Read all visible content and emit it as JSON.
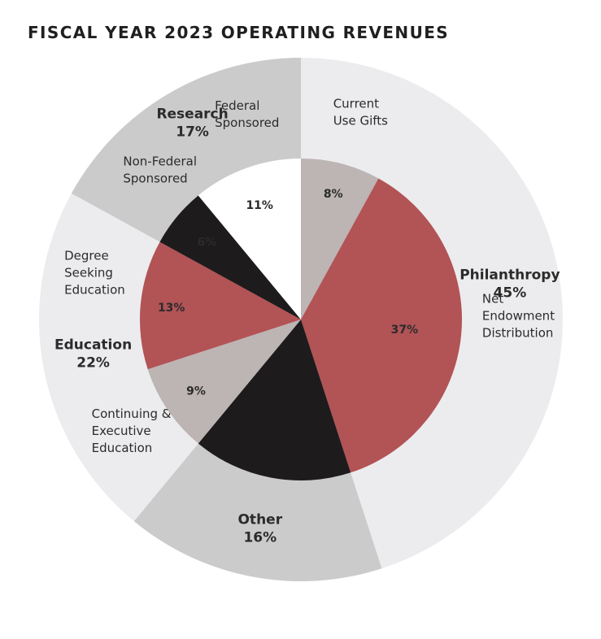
{
  "chart_data": {
    "type": "pie",
    "variant": "nested-donut",
    "title": "FISCAL YEAR 2023 OPERATING REVENUES",
    "outer_ring": [
      {
        "name": "Philanthropy",
        "value": 45,
        "value_label": "45%",
        "color": "#ececee"
      },
      {
        "name": "Other",
        "value": 16,
        "value_label": "16%",
        "color": "#cbcbcc"
      },
      {
        "name": "Education",
        "value": 22,
        "value_label": "22%",
        "color": "#ececee"
      },
      {
        "name": "Research",
        "value": 17,
        "value_label": "17%",
        "color": "#cbcbcc"
      }
    ],
    "inner_ring": [
      {
        "name": "Current Use Gifts",
        "parent": "Philanthropy",
        "value": 8,
        "value_label": "8%",
        "color": "#bdb4b4",
        "label_color": "#2b2b2b",
        "name_lines": [
          "Current",
          "Use Gifts"
        ]
      },
      {
        "name": "Net Endowment Distribution",
        "parent": "Philanthropy",
        "value": 37,
        "value_label": "37%",
        "color": "#b25356",
        "label_color": "#ffffff",
        "name_lines": [
          "Net",
          "Endowment",
          "Distribution"
        ]
      },
      {
        "name": "Other",
        "parent": "Other",
        "value": 16,
        "value_label": "",
        "color": "#1e1b1c",
        "label_color": "#ffffff",
        "name_lines": []
      },
      {
        "name": "Continuing & Executive Education",
        "parent": "Education",
        "value": 9,
        "value_label": "9%",
        "color": "#bdb4b4",
        "label_color": "#2b2b2b",
        "name_lines": [
          "Continuing &",
          "Executive",
          "Education"
        ]
      },
      {
        "name": "Degree Seeking Education",
        "parent": "Education",
        "value": 13,
        "value_label": "13%",
        "color": "#b25356",
        "label_color": "#ffffff",
        "name_lines": [
          "Degree",
          "Seeking",
          "Education"
        ]
      },
      {
        "name": "Non-Federal Sponsored",
        "parent": "Research",
        "value": 6,
        "value_label": "6%",
        "color": "#1e1b1c",
        "label_color": "#ffffff",
        "name_lines": [
          "Non-Federal",
          "Sponsored"
        ]
      },
      {
        "name": "Federal Sponsored",
        "parent": "Research",
        "value": 11,
        "value_label": "11%",
        "color": "#ffffff",
        "label_color": "#2b2b2b",
        "name_lines": [
          "Federal",
          "Sponsored"
        ]
      }
    ]
  }
}
